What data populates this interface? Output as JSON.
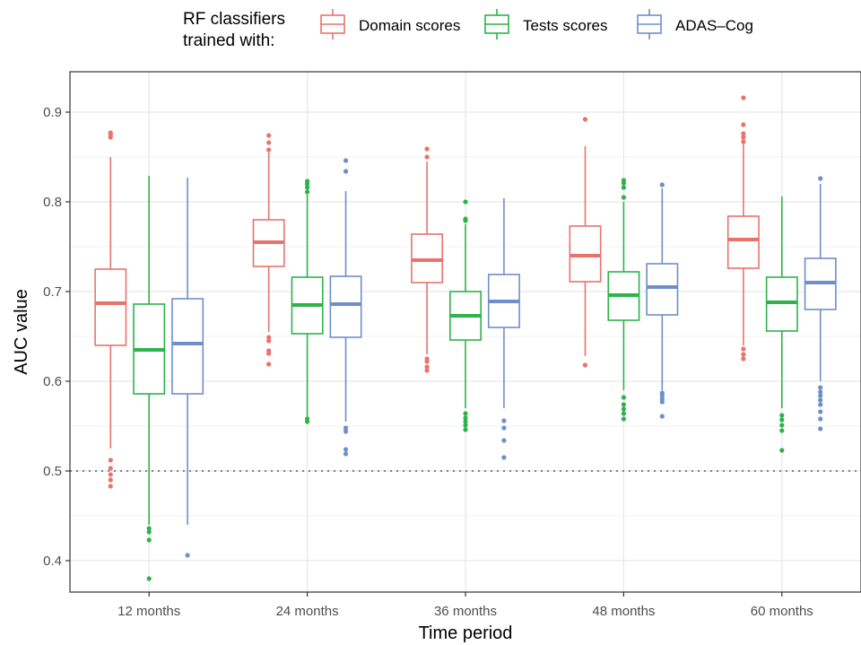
{
  "legend": {
    "title_line1": "RF classifiers",
    "title_line2": "trained with:"
  },
  "chart_data": {
    "type": "boxplot",
    "xlabel": "Time period",
    "ylabel": "AUC value",
    "ylim": [
      0.365,
      0.945
    ],
    "yticks": [
      "0.4",
      "0.5",
      "0.6",
      "0.7",
      "0.8",
      "0.9"
    ],
    "ytick_values": [
      0.4,
      0.5,
      0.6,
      0.7,
      0.8,
      0.9
    ],
    "categories": [
      "12 months",
      "24 months",
      "36 months",
      "48 months",
      "60 months"
    ],
    "reference_line": 0.5,
    "legend_position": "top",
    "grid": true,
    "series": [
      {
        "name": "Domain scores",
        "color": "#e8736c",
        "boxes": [
          {
            "whisker_low": 0.525,
            "q1": 0.64,
            "median": 0.687,
            "q3": 0.725,
            "whisker_high": 0.85,
            "outliers": [
              0.512,
              0.503,
              0.496,
              0.49,
              0.483,
              0.872,
              0.875,
              0.877
            ]
          },
          {
            "whisker_low": 0.655,
            "q1": 0.728,
            "median": 0.755,
            "q3": 0.78,
            "whisker_high": 0.855,
            "outliers": [
              0.619,
              0.631,
              0.634,
              0.645,
              0.649,
              0.858,
              0.866,
              0.874
            ]
          },
          {
            "whisker_low": 0.63,
            "q1": 0.71,
            "median": 0.735,
            "q3": 0.764,
            "whisker_high": 0.845,
            "outliers": [
              0.612,
              0.616,
              0.622,
              0.625,
              0.85,
              0.859
            ]
          },
          {
            "whisker_low": 0.628,
            "q1": 0.711,
            "median": 0.74,
            "q3": 0.773,
            "whisker_high": 0.862,
            "outliers": [
              0.618,
              0.892
            ]
          },
          {
            "whisker_low": 0.64,
            "q1": 0.726,
            "median": 0.758,
            "q3": 0.784,
            "whisker_high": 0.865,
            "outliers": [
              0.625,
              0.63,
              0.636,
              0.867,
              0.872,
              0.876,
              0.886,
              0.916
            ]
          }
        ]
      },
      {
        "name": "Tests scores",
        "color": "#2db34a",
        "boxes": [
          {
            "whisker_low": 0.44,
            "q1": 0.586,
            "median": 0.635,
            "q3": 0.686,
            "whisker_high": 0.829,
            "outliers": [
              0.38,
              0.423,
              0.432,
              0.436
            ]
          },
          {
            "whisker_low": 0.56,
            "q1": 0.653,
            "median": 0.685,
            "q3": 0.716,
            "whisker_high": 0.808,
            "outliers": [
              0.555,
              0.558,
              0.811,
              0.816,
              0.82,
              0.823
            ]
          },
          {
            "whisker_low": 0.57,
            "q1": 0.646,
            "median": 0.673,
            "q3": 0.7,
            "whisker_high": 0.775,
            "outliers": [
              0.546,
              0.551,
              0.555,
              0.559,
              0.564,
              0.779,
              0.781,
              0.8
            ]
          },
          {
            "whisker_low": 0.59,
            "q1": 0.668,
            "median": 0.696,
            "q3": 0.722,
            "whisker_high": 0.8,
            "outliers": [
              0.558,
              0.564,
              0.569,
              0.574,
              0.582,
              0.805,
              0.816,
              0.821,
              0.824
            ]
          },
          {
            "whisker_low": 0.57,
            "q1": 0.656,
            "median": 0.688,
            "q3": 0.716,
            "whisker_high": 0.806,
            "outliers": [
              0.523,
              0.545,
              0.551,
              0.557,
              0.562
            ]
          }
        ]
      },
      {
        "name": "ADAS–Cog",
        "color": "#6e8fcb",
        "boxes": [
          {
            "whisker_low": 0.44,
            "q1": 0.586,
            "median": 0.642,
            "q3": 0.692,
            "whisker_high": 0.827,
            "outliers": [
              0.406
            ]
          },
          {
            "whisker_low": 0.555,
            "q1": 0.649,
            "median": 0.686,
            "q3": 0.717,
            "whisker_high": 0.812,
            "outliers": [
              0.519,
              0.524,
              0.544,
              0.548,
              0.834,
              0.846
            ]
          },
          {
            "whisker_low": 0.57,
            "q1": 0.66,
            "median": 0.689,
            "q3": 0.719,
            "whisker_high": 0.804,
            "outliers": [
              0.515,
              0.534,
              0.548,
              0.556
            ]
          },
          {
            "whisker_low": 0.59,
            "q1": 0.674,
            "median": 0.705,
            "q3": 0.731,
            "whisker_high": 0.815,
            "outliers": [
              0.561,
              0.577,
              0.58,
              0.584,
              0.587,
              0.819
            ]
          },
          {
            "whisker_low": 0.6,
            "q1": 0.68,
            "median": 0.71,
            "q3": 0.737,
            "whisker_high": 0.82,
            "outliers": [
              0.547,
              0.558,
              0.566,
              0.574,
              0.579,
              0.584,
              0.588,
              0.593,
              0.826
            ]
          }
        ]
      }
    ]
  }
}
